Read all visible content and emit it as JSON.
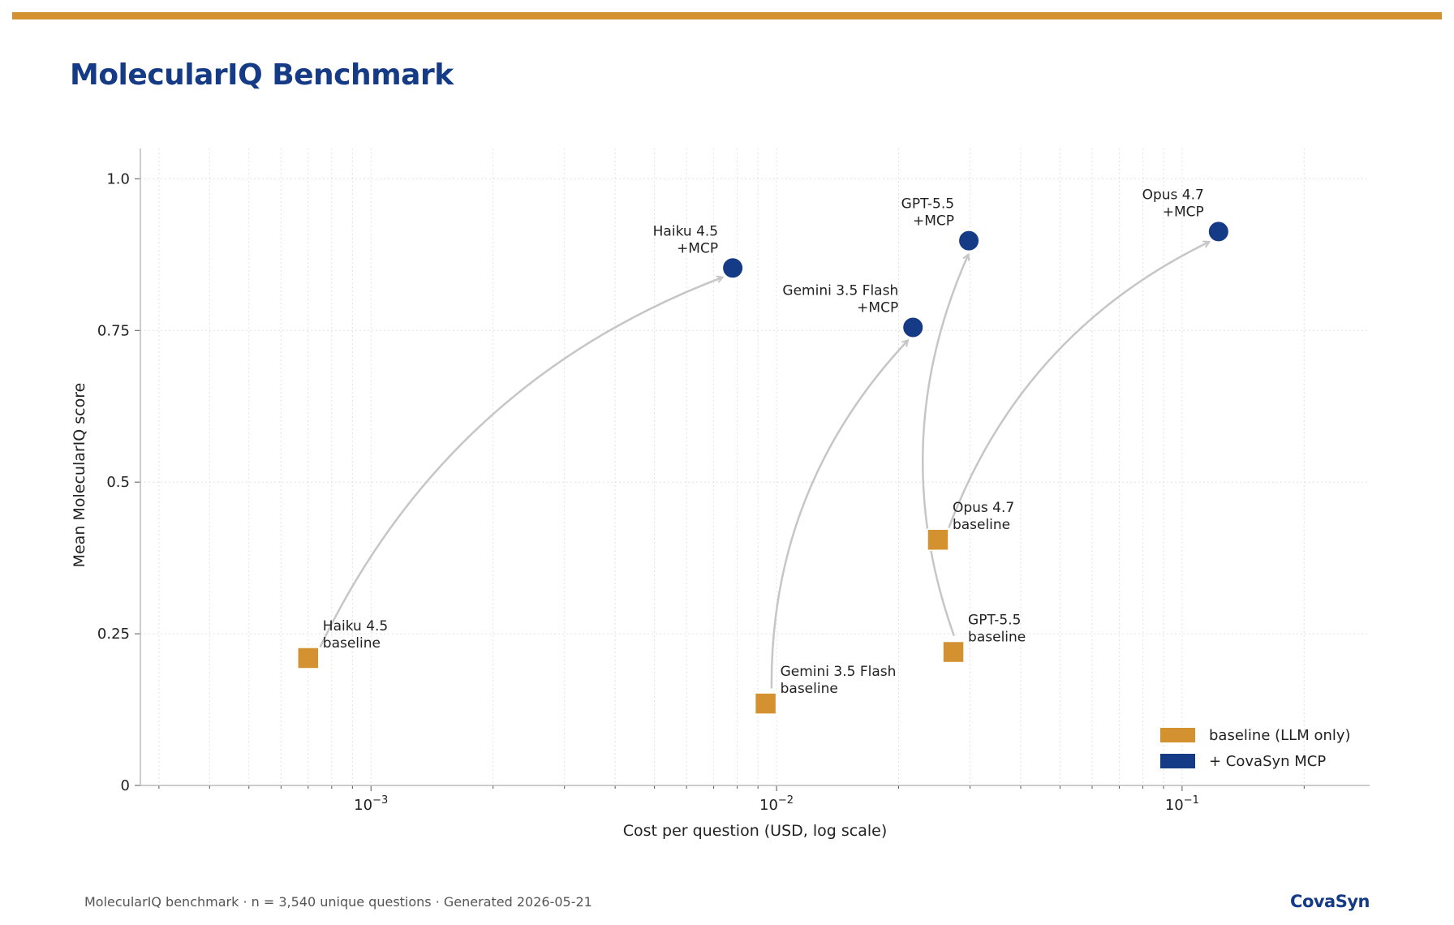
{
  "header": {
    "title": "MolecularIQ Benchmark",
    "accent_color": "#d3922f"
  },
  "footer": {
    "note": "MolecularIQ benchmark  ·  n = 3,540 unique questions  ·  Generated 2026-05-21",
    "brand": "CovaSyn"
  },
  "chart_data": {
    "type": "scatter",
    "xlabel": "Cost per question  (USD, log scale)",
    "ylabel": "Mean MolecularIQ score",
    "xscale": "log",
    "xlim": [
      0.00027,
      0.29
    ],
    "ylim": [
      0,
      1.05
    ],
    "x_ticks": [
      {
        "value": 0.001,
        "base": "10",
        "exp": "−3"
      },
      {
        "value": 0.01,
        "base": "10",
        "exp": "−2"
      },
      {
        "value": 0.1,
        "base": "10",
        "exp": "−1"
      }
    ],
    "y_ticks": [
      {
        "value": 0,
        "label": "0"
      },
      {
        "value": 0.25,
        "label": "0.25"
      },
      {
        "value": 0.5,
        "label": "0.5"
      },
      {
        "value": 0.75,
        "label": "0.75"
      },
      {
        "value": 1.0,
        "label": "1.0"
      }
    ],
    "grid": true,
    "legend_position": "bottom-right",
    "series": [
      {
        "name": "baseline (LLM only)",
        "marker": "square",
        "color": "#d3922f",
        "points": [
          {
            "model": "Haiku 4.5",
            "x": 0.0007,
            "y": 0.21,
            "label": [
              "Haiku 4.5",
              "baseline"
            ]
          },
          {
            "model": "Gemini 3.5 Flash",
            "x": 0.0094,
            "y": 0.135,
            "label": [
              "Gemini 3.5 Flash",
              "baseline"
            ]
          },
          {
            "model": "Opus 4.7",
            "x": 0.025,
            "y": 0.405,
            "label": [
              "Opus 4.7",
              "baseline"
            ]
          },
          {
            "model": "GPT-5.5",
            "x": 0.0273,
            "y": 0.22,
            "label": [
              "GPT-5.5",
              "baseline"
            ]
          }
        ]
      },
      {
        "name": "+ CovaSyn MCP",
        "marker": "circle",
        "color": "#153a86",
        "points": [
          {
            "model": "Haiku 4.5",
            "x": 0.0078,
            "y": 0.853,
            "label": [
              "Haiku 4.5",
              "+MCP"
            ]
          },
          {
            "model": "Gemini 3.5 Flash",
            "x": 0.0217,
            "y": 0.755,
            "label": [
              "Gemini 3.5 Flash",
              "+MCP"
            ]
          },
          {
            "model": "GPT-5.5",
            "x": 0.0298,
            "y": 0.898,
            "label": [
              "GPT-5.5",
              "+MCP"
            ]
          },
          {
            "model": "Opus 4.7",
            "x": 0.123,
            "y": 0.913,
            "label": [
              "Opus 4.7",
              "+MCP"
            ]
          }
        ]
      }
    ],
    "arrows": [
      {
        "model": "Haiku 4.5"
      },
      {
        "model": "Gemini 3.5 Flash"
      },
      {
        "model": "GPT-5.5"
      },
      {
        "model": "Opus 4.7"
      }
    ]
  }
}
